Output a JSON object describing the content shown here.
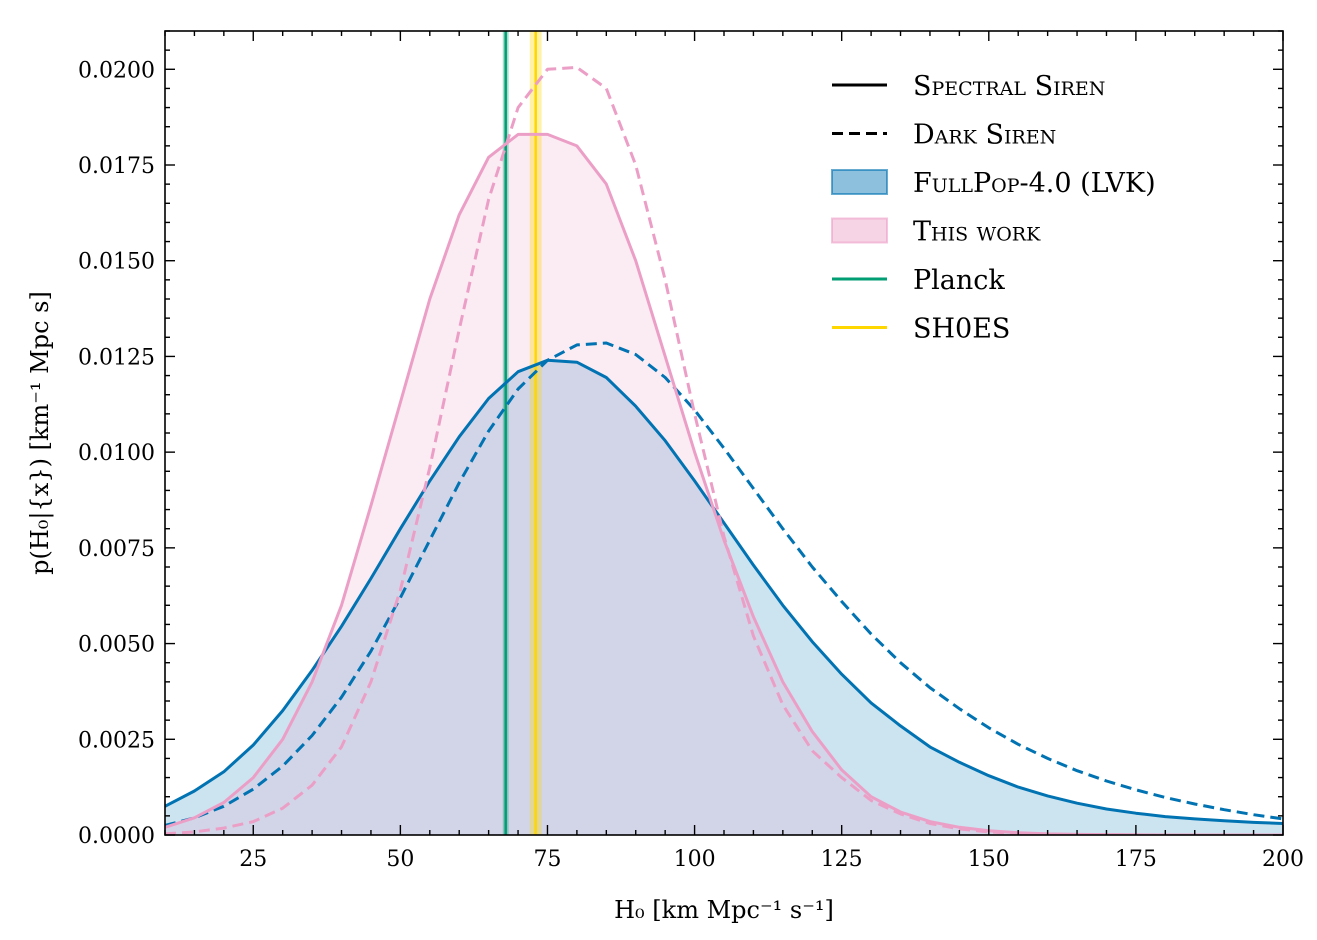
{
  "chart_data": {
    "type": "line",
    "xlabel": "H₀ [km Mpc⁻¹ s⁻¹]",
    "ylabel": "p(H₀|{x}) [km⁻¹ Mpc s]",
    "xlim": [
      10,
      200
    ],
    "ylim": [
      0,
      0.021
    ],
    "xticks": [
      25,
      50,
      75,
      100,
      125,
      150,
      175,
      200
    ],
    "yticks": [
      0.0,
      0.0025,
      0.005,
      0.0075,
      0.01,
      0.0125,
      0.015,
      0.0175,
      0.02
    ],
    "ytick_labels": [
      "0.0000",
      "0.0025",
      "0.0050",
      "0.0075",
      "0.0100",
      "0.0125",
      "0.0150",
      "0.0175",
      "0.0200"
    ],
    "legend_position": "top-right",
    "legend": [
      {
        "label": "Spectral Siren",
        "style": "solid-line",
        "color": "#000000",
        "smallcaps": true
      },
      {
        "label": "Dark Siren",
        "style": "dashed-line",
        "color": "#000000",
        "smallcaps": true
      },
      {
        "label": "FullPop-4.0 (LVK)",
        "style": "patch",
        "color": "#0173b2",
        "smallcaps": true
      },
      {
        "label": "This work",
        "style": "patch",
        "color": "#ec9fc6",
        "smallcaps": true
      },
      {
        "label": "Planck",
        "style": "solid-line",
        "color": "#029e73",
        "smallcaps": false
      },
      {
        "label": "SH0ES",
        "style": "solid-line",
        "color": "#ffd700",
        "smallcaps": false
      }
    ],
    "colors": {
      "lvk": "#0173b2",
      "this_work": "#ec9fc6",
      "planck": "#029e73",
      "shoes": "#ffd700"
    },
    "series": [
      {
        "id": "lvk-spectral",
        "style": "solid",
        "color": "#0173b2",
        "fill": true,
        "x": [
          10,
          15,
          20,
          25,
          30,
          35,
          40,
          45,
          50,
          55,
          60,
          65,
          70,
          75,
          80,
          85,
          90,
          95,
          100,
          105,
          110,
          115,
          120,
          125,
          130,
          135,
          140,
          145,
          150,
          155,
          160,
          165,
          170,
          175,
          180,
          185,
          190,
          195,
          200
        ],
        "y": [
          0.00075,
          0.00115,
          0.00165,
          0.00235,
          0.00325,
          0.0043,
          0.00545,
          0.0067,
          0.008,
          0.00925,
          0.0104,
          0.0114,
          0.0121,
          0.0124,
          0.01235,
          0.01195,
          0.0112,
          0.0103,
          0.00925,
          0.00815,
          0.00705,
          0.006,
          0.00505,
          0.0042,
          0.00345,
          0.00285,
          0.0023,
          0.0019,
          0.00155,
          0.00125,
          0.00102,
          0.00083,
          0.00068,
          0.00057,
          0.00048,
          0.00042,
          0.00037,
          0.00033,
          0.0003
        ]
      },
      {
        "id": "lvk-dark",
        "style": "dashed",
        "color": "#0173b2",
        "fill": false,
        "x": [
          10,
          15,
          20,
          25,
          30,
          35,
          40,
          45,
          50,
          55,
          60,
          65,
          70,
          75,
          80,
          85,
          90,
          95,
          100,
          105,
          110,
          115,
          120,
          125,
          130,
          135,
          140,
          145,
          150,
          155,
          160,
          165,
          170,
          175,
          180,
          185,
          190,
          195,
          200
        ],
        "y": [
          0.00025,
          0.00045,
          0.00075,
          0.0012,
          0.0018,
          0.0026,
          0.0036,
          0.0048,
          0.0062,
          0.0077,
          0.0092,
          0.01055,
          0.01165,
          0.0124,
          0.0128,
          0.01285,
          0.01255,
          0.01195,
          0.0111,
          0.0101,
          0.00905,
          0.008,
          0.007,
          0.0061,
          0.00525,
          0.0045,
          0.00385,
          0.0033,
          0.0028,
          0.00237,
          0.002,
          0.00168,
          0.00141,
          0.00118,
          0.00098,
          0.00081,
          0.00066,
          0.00053,
          0.00042
        ]
      },
      {
        "id": "this-spectral",
        "style": "solid",
        "color": "#ec9fc6",
        "fill": true,
        "x": [
          10,
          15,
          20,
          25,
          30,
          35,
          40,
          45,
          50,
          55,
          60,
          65,
          70,
          75,
          80,
          85,
          90,
          95,
          100,
          105,
          110,
          115,
          120,
          125,
          130,
          135,
          140,
          145,
          150,
          155,
          160,
          165,
          170,
          175,
          180,
          185,
          190,
          195,
          200
        ],
        "y": [
          0.0002,
          0.00045,
          0.00085,
          0.0015,
          0.0025,
          0.004,
          0.006,
          0.0086,
          0.0113,
          0.014,
          0.0162,
          0.0177,
          0.0183,
          0.0183,
          0.018,
          0.017,
          0.015,
          0.0125,
          0.01,
          0.0077,
          0.0057,
          0.004,
          0.0027,
          0.0017,
          0.001,
          0.0006,
          0.00035,
          0.0002,
          0.00011,
          6e-05,
          3e-05,
          1.5e-05,
          1e-05,
          5e-06,
          0.0,
          0.0,
          0.0,
          0.0,
          0.0
        ]
      },
      {
        "id": "this-dark",
        "style": "dashed",
        "color": "#ec9fc6",
        "fill": false,
        "x": [
          10,
          15,
          20,
          25,
          30,
          35,
          40,
          45,
          50,
          55,
          60,
          65,
          70,
          75,
          80,
          85,
          90,
          95,
          100,
          105,
          110,
          115,
          120,
          125,
          130,
          135,
          140,
          145,
          150,
          155,
          160,
          165,
          170,
          175,
          180,
          185,
          190,
          195,
          200
        ],
        "y": [
          3e-05,
          8e-05,
          0.00018,
          0.00035,
          0.0007,
          0.0013,
          0.0023,
          0.004,
          0.0064,
          0.0096,
          0.0132,
          0.0166,
          0.019,
          0.02,
          0.02005,
          0.0195,
          0.0175,
          0.0145,
          0.011,
          0.0078,
          0.0052,
          0.0034,
          0.0022,
          0.0015,
          0.0009,
          0.00055,
          0.0003,
          0.00016,
          8e-05,
          4e-05,
          2e-05,
          1e-05,
          5e-06,
          0.0,
          0.0,
          0.0,
          0.0,
          0.0,
          0.0
        ]
      }
    ],
    "bands": [
      {
        "id": "planck",
        "center": 67.9,
        "low": 67.4,
        "high": 68.4,
        "color": "#029e73"
      },
      {
        "id": "shoes",
        "center": 73.0,
        "low": 72.0,
        "high": 74.0,
        "color": "#ffd700"
      }
    ]
  }
}
